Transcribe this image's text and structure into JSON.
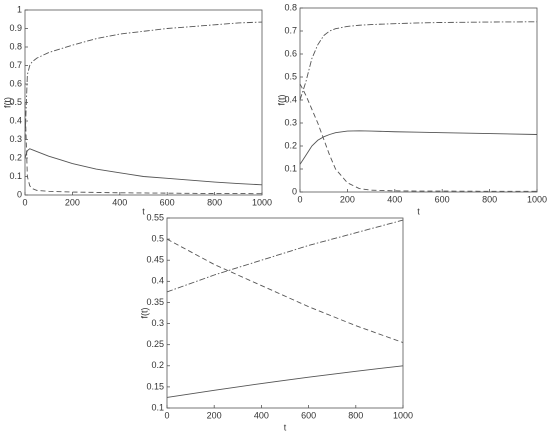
{
  "chart_data": [
    {
      "type": "line",
      "xlabel": "t",
      "ylabel": "f(t)",
      "x": [
        0,
        10,
        20,
        30,
        50,
        100,
        150,
        200,
        300,
        400,
        500,
        600,
        700,
        800,
        900,
        1000
      ],
      "series": [
        {
          "color": "#555555",
          "linestyle": "solid",
          "values": [
            0.2,
            0.24,
            0.25,
            0.245,
            0.235,
            0.21,
            0.19,
            0.17,
            0.14,
            0.12,
            0.1,
            0.09,
            0.08,
            0.07,
            0.062,
            0.055
          ]
        },
        {
          "color": "#555555",
          "linestyle": "dashed",
          "values": [
            0.5,
            0.1,
            0.05,
            0.035,
            0.025,
            0.02,
            0.018,
            0.016,
            0.014,
            0.012,
            0.011,
            0.01,
            0.009,
            0.008,
            0.008,
            0.007
          ]
        },
        {
          "color": "#555555",
          "linestyle": "dashdot",
          "values": [
            0.3,
            0.65,
            0.7,
            0.72,
            0.74,
            0.77,
            0.79,
            0.81,
            0.845,
            0.87,
            0.885,
            0.9,
            0.91,
            0.92,
            0.93,
            0.935
          ]
        }
      ],
      "xlim": [
        0,
        1000
      ],
      "ylim": [
        0,
        1
      ],
      "xticks": [
        0,
        200,
        400,
        600,
        800,
        1000
      ],
      "yticks": [
        0,
        0.1,
        0.2,
        0.3,
        0.4,
        0.5,
        0.6,
        0.7,
        0.8,
        0.9,
        1
      ]
    },
    {
      "type": "line",
      "xlabel": "t",
      "ylabel": "f(t)",
      "x": [
        0,
        25,
        50,
        75,
        100,
        125,
        150,
        200,
        250,
        300,
        400,
        500,
        600,
        800,
        1000
      ],
      "series": [
        {
          "color": "#555555",
          "linestyle": "solid",
          "values": [
            0.12,
            0.16,
            0.2,
            0.225,
            0.24,
            0.25,
            0.258,
            0.265,
            0.266,
            0.265,
            0.262,
            0.26,
            0.258,
            0.254,
            0.25
          ]
        },
        {
          "color": "#555555",
          "linestyle": "dashed",
          "values": [
            0.47,
            0.42,
            0.36,
            0.3,
            0.23,
            0.16,
            0.1,
            0.04,
            0.015,
            0.008,
            0.005,
            0.004,
            0.004,
            0.003,
            0.003
          ]
        },
        {
          "color": "#555555",
          "linestyle": "dashdot",
          "values": [
            0.4,
            0.48,
            0.58,
            0.64,
            0.68,
            0.7,
            0.71,
            0.72,
            0.725,
            0.728,
            0.732,
            0.735,
            0.737,
            0.739,
            0.74
          ]
        }
      ],
      "xlim": [
        0,
        1000
      ],
      "ylim": [
        0,
        0.8
      ],
      "xticks": [
        0,
        200,
        400,
        600,
        800,
        1000
      ],
      "yticks": [
        0,
        0.1,
        0.2,
        0.3,
        0.4,
        0.5,
        0.6,
        0.7,
        0.8
      ]
    },
    {
      "type": "line",
      "xlabel": "t",
      "ylabel": "f(t)",
      "x": [
        0,
        200,
        400,
        600,
        800,
        1000
      ],
      "series": [
        {
          "color": "#555555",
          "linestyle": "solid",
          "values": [
            0.125,
            0.142,
            0.158,
            0.173,
            0.187,
            0.2
          ]
        },
        {
          "color": "#555555",
          "linestyle": "dashed",
          "values": [
            0.5,
            0.44,
            0.39,
            0.34,
            0.295,
            0.255
          ]
        },
        {
          "color": "#555555",
          "linestyle": "dashdot",
          "values": [
            0.375,
            0.415,
            0.45,
            0.485,
            0.515,
            0.545
          ]
        }
      ],
      "xlim": [
        0,
        1000
      ],
      "ylim": [
        0.1,
        0.55
      ],
      "xticks": [
        0,
        200,
        400,
        600,
        800,
        1000
      ],
      "yticks": [
        0.1,
        0.15,
        0.2,
        0.25,
        0.3,
        0.35,
        0.4,
        0.45,
        0.5,
        0.55
      ]
    }
  ]
}
